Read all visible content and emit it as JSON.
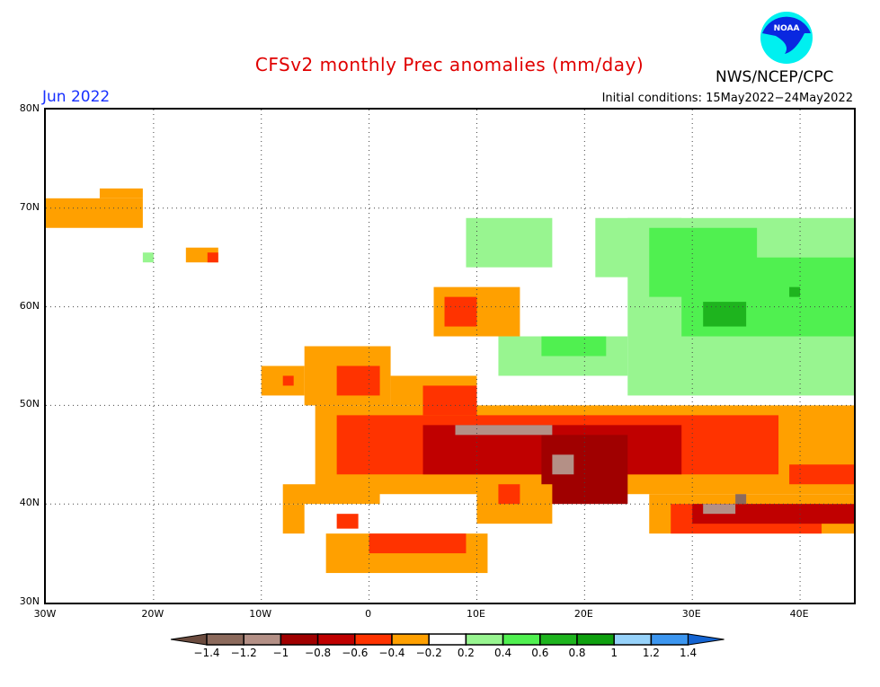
{
  "header": {
    "title": "CFSv2 monthly Prec anomalies (mm/day)",
    "month": "Jun 2022",
    "initial_conditions": "Initial conditions: 15May2022−24May2022",
    "org": "NWS/NCEP/CPC",
    "logo_text": "NOAA"
  },
  "map": {
    "lon_range": [
      -30,
      45
    ],
    "lat_range": [
      30,
      80
    ],
    "lat_labels": [
      "80N",
      "70N",
      "60N",
      "50N",
      "40N",
      "30N"
    ],
    "lat_values": [
      80,
      70,
      60,
      50,
      40,
      30
    ],
    "lon_labels": [
      "30W",
      "20W",
      "10W",
      "0",
      "10E",
      "20E",
      "30E",
      "40E"
    ],
    "lon_values": [
      -30,
      -20,
      -10,
      0,
      10,
      20,
      30,
      40
    ],
    "anomaly_regions": [
      {
        "lon": [
          -30,
          -21
        ],
        "lat": [
          68,
          71
        ],
        "v": -0.4
      },
      {
        "lon": [
          -25,
          -21
        ],
        "lat": [
          71,
          72
        ],
        "v": -0.4
      },
      {
        "lon": [
          -17,
          -14
        ],
        "lat": [
          64.5,
          66
        ],
        "v": -0.4
      },
      {
        "lon": [
          -15,
          -14
        ],
        "lat": [
          64.5,
          65.5
        ],
        "v": -0.6
      },
      {
        "lon": [
          -21,
          -20
        ],
        "lat": [
          64.5,
          65.5
        ],
        "v": 0.2
      },
      {
        "lon": [
          9,
          17
        ],
        "lat": [
          64,
          69
        ],
        "v": 0.2
      },
      {
        "lon": [
          21,
          29
        ],
        "lat": [
          63,
          69
        ],
        "v": 0.2
      },
      {
        "lon": [
          24,
          45
        ],
        "lat": [
          51,
          69
        ],
        "v": 0.2
      },
      {
        "lon": [
          26,
          36
        ],
        "lat": [
          61,
          68
        ],
        "v": 0.4
      },
      {
        "lon": [
          29,
          45
        ],
        "lat": [
          57,
          65
        ],
        "v": 0.4
      },
      {
        "lon": [
          31,
          35
        ],
        "lat": [
          58,
          60.5
        ],
        "v": 0.6
      },
      {
        "lon": [
          39,
          40
        ],
        "lat": [
          61,
          62
        ],
        "v": 0.6
      },
      {
        "lon": [
          12,
          24
        ],
        "lat": [
          53,
          57
        ],
        "v": 0.2
      },
      {
        "lon": [
          16,
          22
        ],
        "lat": [
          55,
          57
        ],
        "v": 0.4
      },
      {
        "lon": [
          6,
          14
        ],
        "lat": [
          57,
          62
        ],
        "v": -0.4
      },
      {
        "lon": [
          7,
          10
        ],
        "lat": [
          58,
          61
        ],
        "v": -0.6
      },
      {
        "lon": [
          -10,
          -6
        ],
        "lat": [
          51,
          54
        ],
        "v": -0.4
      },
      {
        "lon": [
          -8,
          -7
        ],
        "lat": [
          52,
          53
        ],
        "v": -0.6
      },
      {
        "lon": [
          -6,
          2
        ],
        "lat": [
          50,
          56
        ],
        "v": -0.4
      },
      {
        "lon": [
          -3,
          1
        ],
        "lat": [
          51,
          54
        ],
        "v": -0.6
      },
      {
        "lon": [
          -5,
          45
        ],
        "lat": [
          41,
          50
        ],
        "v": -0.4
      },
      {
        "lon": [
          2,
          10
        ],
        "lat": [
          50,
          53
        ],
        "v": -0.4
      },
      {
        "lon": [
          -3,
          38
        ],
        "lat": [
          43,
          49
        ],
        "v": -0.6
      },
      {
        "lon": [
          5,
          10
        ],
        "lat": [
          49,
          52
        ],
        "v": -0.6
      },
      {
        "lon": [
          5,
          29
        ],
        "lat": [
          43,
          48
        ],
        "v": -0.8
      },
      {
        "lon": [
          16,
          24
        ],
        "lat": [
          40,
          47
        ],
        "v": -1
      },
      {
        "lon": [
          8,
          17
        ],
        "lat": [
          47,
          48
        ],
        "v": -1.2
      },
      {
        "lon": [
          17,
          19
        ],
        "lat": [
          43,
          45
        ],
        "v": -1.2
      },
      {
        "lon": [
          -8,
          1
        ],
        "lat": [
          40,
          42
        ],
        "v": -0.4
      },
      {
        "lon": [
          -8,
          -6
        ],
        "lat": [
          37,
          40
        ],
        "v": -0.4
      },
      {
        "lon": [
          -3,
          -1
        ],
        "lat": [
          37.5,
          39
        ],
        "v": -0.6
      },
      {
        "lon": [
          10,
          17
        ],
        "lat": [
          38,
          42
        ],
        "v": -0.4
      },
      {
        "lon": [
          12,
          14
        ],
        "lat": [
          40,
          42
        ],
        "v": -0.6
      },
      {
        "lon": [
          26,
          45
        ],
        "lat": [
          37,
          41
        ],
        "v": -0.4
      },
      {
        "lon": [
          28,
          42
        ],
        "lat": [
          37,
          40
        ],
        "v": -0.6
      },
      {
        "lon": [
          30,
          45
        ],
        "lat": [
          38,
          40
        ],
        "v": -0.8
      },
      {
        "lon": [
          31,
          34
        ],
        "lat": [
          39,
          40
        ],
        "v": -1.2
      },
      {
        "lon": [
          34,
          35
        ],
        "lat": [
          40,
          41
        ],
        "v": -1.4
      },
      {
        "lon": [
          39,
          45
        ],
        "lat": [
          42,
          44
        ],
        "v": -0.6
      },
      {
        "lon": [
          -4,
          11
        ],
        "lat": [
          33,
          37
        ],
        "v": -0.4
      },
      {
        "lon": [
          0,
          9
        ],
        "lat": [
          35,
          37
        ],
        "v": -0.6
      }
    ]
  },
  "colorbar": {
    "labels": [
      "−1.4",
      "−1.2",
      "−1",
      "−0.8",
      "−0.6",
      "−0.4",
      "−0.2",
      "0.2",
      "0.4",
      "0.6",
      "0.8",
      "1",
      "1.2",
      "1.4"
    ],
    "colors": [
      "#8c6a5c",
      "#b49086",
      "#a00000",
      "#c00000",
      "#ff3300",
      "#ffa000",
      "#ffffff",
      "#98f590",
      "#50f050",
      "#1eb41e",
      "#0fa00f",
      "#96d2fa",
      "#3c96f0"
    ],
    "low_color": "#6b4b3e",
    "high_color": "#1464d2",
    "bins": [
      -1.4,
      -1.2,
      -1,
      -0.8,
      -0.6,
      -0.4,
      -0.2,
      0.2,
      0.4,
      0.6,
      0.8,
      1,
      1.2,
      1.4
    ]
  }
}
